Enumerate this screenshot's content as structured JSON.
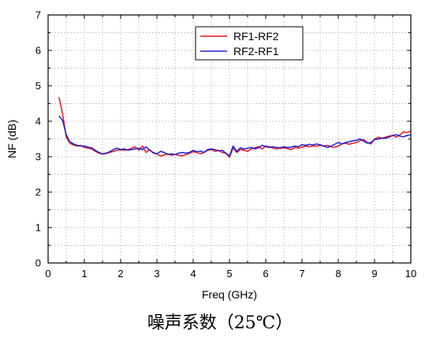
{
  "chart_data": {
    "type": "line",
    "xlabel": "Freq (GHz)",
    "ylabel": "NF (dB)",
    "xlim": [
      0,
      10
    ],
    "ylim": [
      0,
      7
    ],
    "x_ticks": [
      "0",
      "1",
      "2",
      "3",
      "4",
      "5",
      "6",
      "7",
      "8",
      "9",
      "10"
    ],
    "y_ticks": [
      "0",
      "1",
      "2",
      "3",
      "4",
      "5",
      "6",
      "7"
    ],
    "grid": true,
    "legend_position": "top-center",
    "series": [
      {
        "name": "RF1-RF2",
        "color": "#e8141c",
        "x": [
          0.3,
          0.4,
          0.5,
          0.6,
          0.7,
          0.8,
          0.9,
          1.0,
          1.1,
          1.2,
          1.3,
          1.4,
          1.5,
          1.6,
          1.7,
          1.8,
          1.9,
          2.0,
          2.1,
          2.2,
          2.3,
          2.4,
          2.5,
          2.6,
          2.7,
          2.8,
          2.9,
          3.0,
          3.1,
          3.2,
          3.3,
          3.4,
          3.5,
          3.6,
          3.7,
          3.8,
          3.9,
          4.0,
          4.1,
          4.2,
          4.3,
          4.4,
          4.5,
          4.6,
          4.7,
          4.8,
          4.9,
          5.0,
          5.1,
          5.2,
          5.3,
          5.4,
          5.5,
          5.6,
          5.7,
          5.8,
          5.9,
          6.0,
          6.1,
          6.2,
          6.3,
          6.4,
          6.5,
          6.6,
          6.7,
          6.8,
          6.9,
          7.0,
          7.1,
          7.2,
          7.3,
          7.4,
          7.5,
          7.6,
          7.7,
          7.8,
          7.9,
          8.0,
          8.1,
          8.2,
          8.3,
          8.4,
          8.5,
          8.6,
          8.7,
          8.8,
          8.9,
          9.0,
          9.1,
          9.2,
          9.3,
          9.4,
          9.5,
          9.6,
          9.7,
          9.8,
          9.9,
          10.0
        ],
        "y": [
          4.68,
          4.2,
          3.55,
          3.38,
          3.33,
          3.3,
          3.32,
          3.26,
          3.24,
          3.22,
          3.15,
          3.1,
          3.07,
          3.09,
          3.12,
          3.15,
          3.18,
          3.2,
          3.18,
          3.2,
          3.24,
          3.28,
          3.18,
          3.3,
          3.12,
          3.2,
          3.1,
          3.08,
          3.02,
          3.05,
          3.08,
          3.04,
          3.06,
          3.04,
          3.02,
          3.06,
          3.1,
          3.14,
          3.12,
          3.08,
          3.12,
          3.18,
          3.2,
          3.15,
          3.18,
          3.12,
          3.1,
          2.98,
          3.25,
          3.12,
          3.2,
          3.18,
          3.15,
          3.22,
          3.25,
          3.28,
          3.22,
          3.3,
          3.28,
          3.24,
          3.22,
          3.24,
          3.25,
          3.23,
          3.2,
          3.26,
          3.24,
          3.27,
          3.3,
          3.28,
          3.3,
          3.3,
          3.32,
          3.3,
          3.32,
          3.28,
          3.27,
          3.3,
          3.36,
          3.38,
          3.35,
          3.38,
          3.4,
          3.45,
          3.48,
          3.4,
          3.36,
          3.5,
          3.55,
          3.52,
          3.55,
          3.58,
          3.6,
          3.55,
          3.62,
          3.7,
          3.68,
          3.72
        ]
      },
      {
        "name": "RF2-RF1",
        "color": "#1f1fd6",
        "x": [
          0.3,
          0.4,
          0.5,
          0.6,
          0.7,
          0.8,
          0.9,
          1.0,
          1.1,
          1.2,
          1.3,
          1.4,
          1.5,
          1.6,
          1.7,
          1.8,
          1.9,
          2.0,
          2.1,
          2.2,
          2.3,
          2.4,
          2.5,
          2.6,
          2.7,
          2.8,
          2.9,
          3.0,
          3.1,
          3.2,
          3.3,
          3.4,
          3.5,
          3.6,
          3.7,
          3.8,
          3.9,
          4.0,
          4.1,
          4.2,
          4.3,
          4.4,
          4.5,
          4.6,
          4.7,
          4.8,
          4.9,
          5.0,
          5.1,
          5.2,
          5.3,
          5.4,
          5.5,
          5.6,
          5.7,
          5.8,
          5.9,
          6.0,
          6.1,
          6.2,
          6.3,
          6.4,
          6.5,
          6.6,
          6.7,
          6.8,
          6.9,
          7.0,
          7.1,
          7.2,
          7.3,
          7.4,
          7.5,
          7.6,
          7.7,
          7.8,
          7.9,
          8.0,
          8.1,
          8.2,
          8.3,
          8.4,
          8.5,
          8.6,
          8.7,
          8.8,
          8.9,
          9.0,
          9.1,
          9.2,
          9.3,
          9.4,
          9.5,
          9.6,
          9.7,
          9.8,
          9.9,
          10.0
        ],
        "y": [
          4.15,
          4.02,
          3.62,
          3.42,
          3.36,
          3.32,
          3.3,
          3.3,
          3.27,
          3.25,
          3.18,
          3.12,
          3.08,
          3.1,
          3.14,
          3.2,
          3.24,
          3.2,
          3.22,
          3.18,
          3.2,
          3.22,
          3.24,
          3.2,
          3.28,
          3.18,
          3.12,
          3.08,
          3.15,
          3.12,
          3.06,
          3.08,
          3.06,
          3.1,
          3.12,
          3.1,
          3.12,
          3.18,
          3.14,
          3.16,
          3.12,
          3.2,
          3.22,
          3.2,
          3.16,
          3.18,
          3.1,
          3.02,
          3.3,
          3.15,
          3.25,
          3.22,
          3.24,
          3.26,
          3.22,
          3.25,
          3.32,
          3.28,
          3.26,
          3.28,
          3.26,
          3.25,
          3.28,
          3.26,
          3.27,
          3.3,
          3.28,
          3.34,
          3.32,
          3.35,
          3.33,
          3.36,
          3.34,
          3.3,
          3.26,
          3.3,
          3.35,
          3.4,
          3.36,
          3.4,
          3.42,
          3.45,
          3.46,
          3.5,
          3.44,
          3.38,
          3.4,
          3.48,
          3.5,
          3.52,
          3.52,
          3.55,
          3.6,
          3.62,
          3.58,
          3.56,
          3.6,
          3.62
        ]
      }
    ]
  },
  "caption": "噪声系数（25℃）"
}
